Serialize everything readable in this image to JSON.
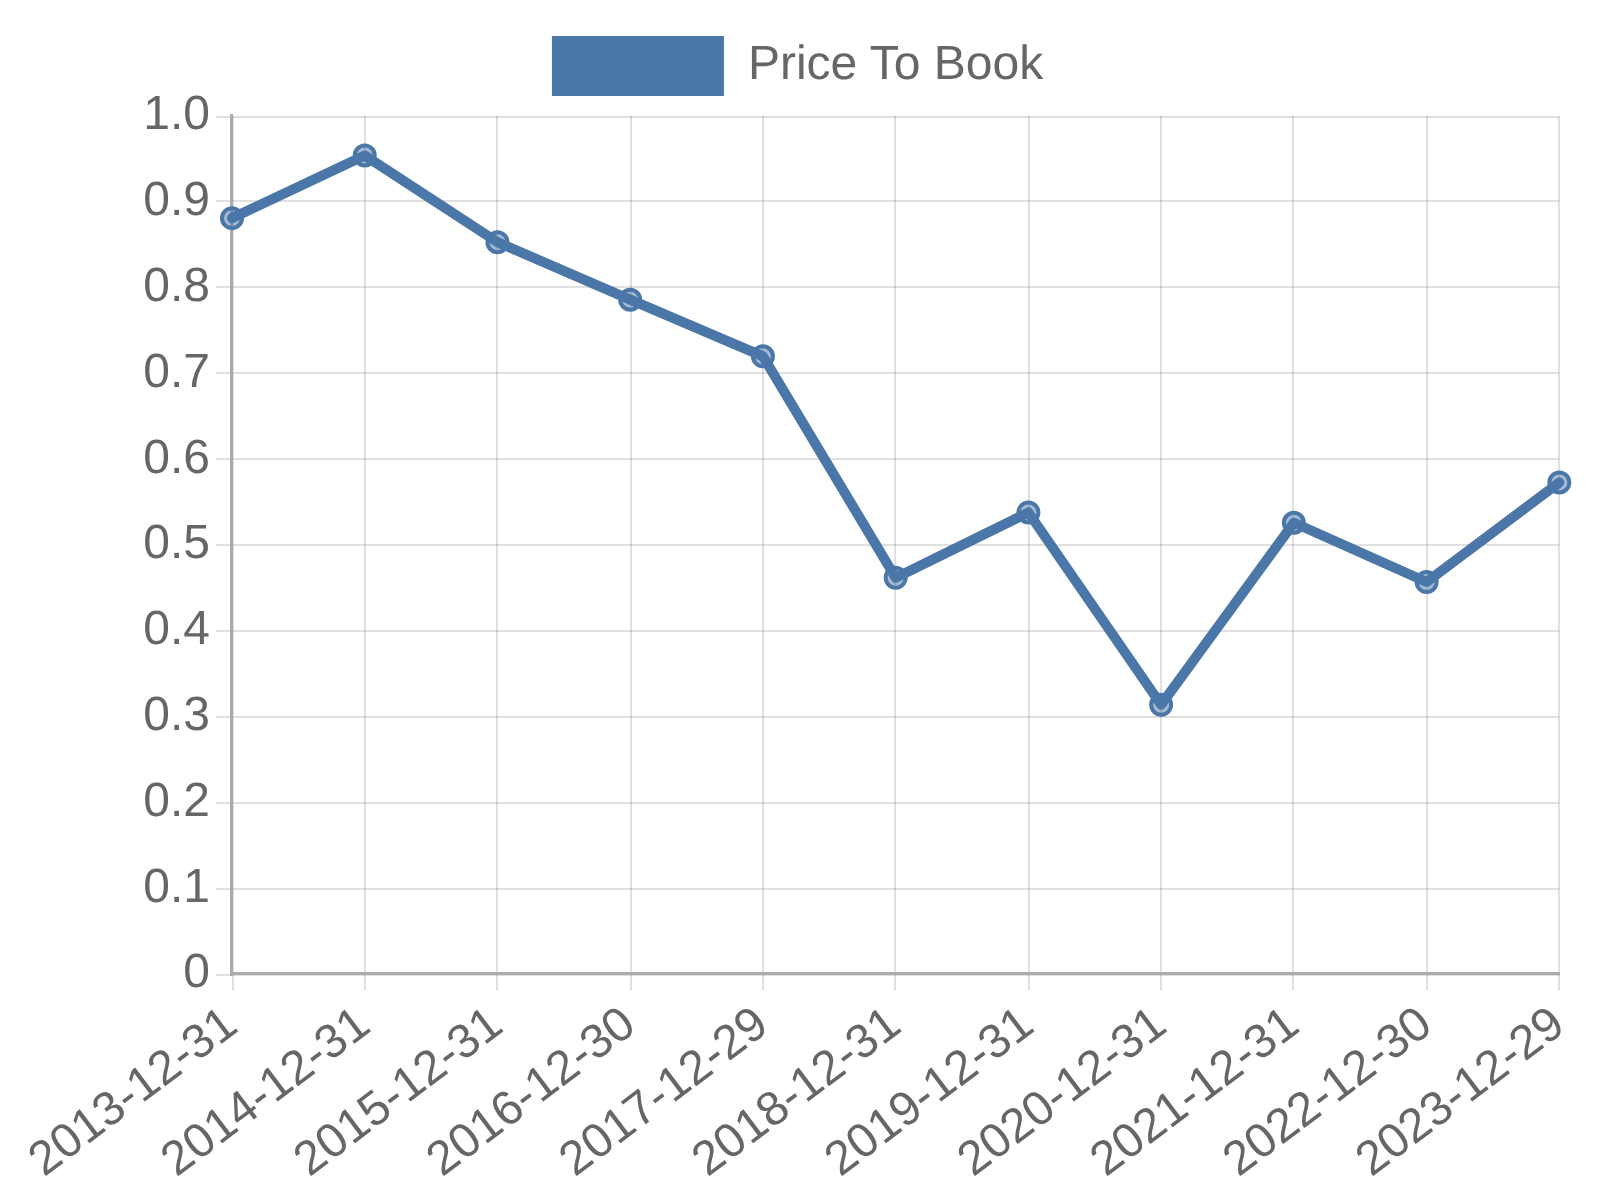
{
  "chart_data": {
    "type": "line",
    "categories": [
      "2013-12-31",
      "2014-12-31",
      "2015-12-31",
      "2016-12-30",
      "2017-12-29",
      "2018-12-31",
      "2019-12-31",
      "2020-12-31",
      "2021-12-31",
      "2022-12-30",
      "2023-12-29"
    ],
    "series": [
      {
        "name": "Price To Book",
        "color": "#4a76a8",
        "values": [
          0.881,
          0.954,
          0.853,
          0.786,
          0.72,
          0.462,
          0.538,
          0.314,
          0.526,
          0.457,
          0.573
        ]
      }
    ],
    "ylim": [
      0,
      1
    ],
    "yticks": [
      0,
      0.1,
      0.2,
      0.3,
      0.4,
      0.5,
      0.6,
      0.7,
      0.8,
      0.9,
      {
        "value": 1,
        "label": "1.0"
      }
    ],
    "grid": true,
    "legend": "top",
    "marker": "circle",
    "line_style": "solid"
  }
}
